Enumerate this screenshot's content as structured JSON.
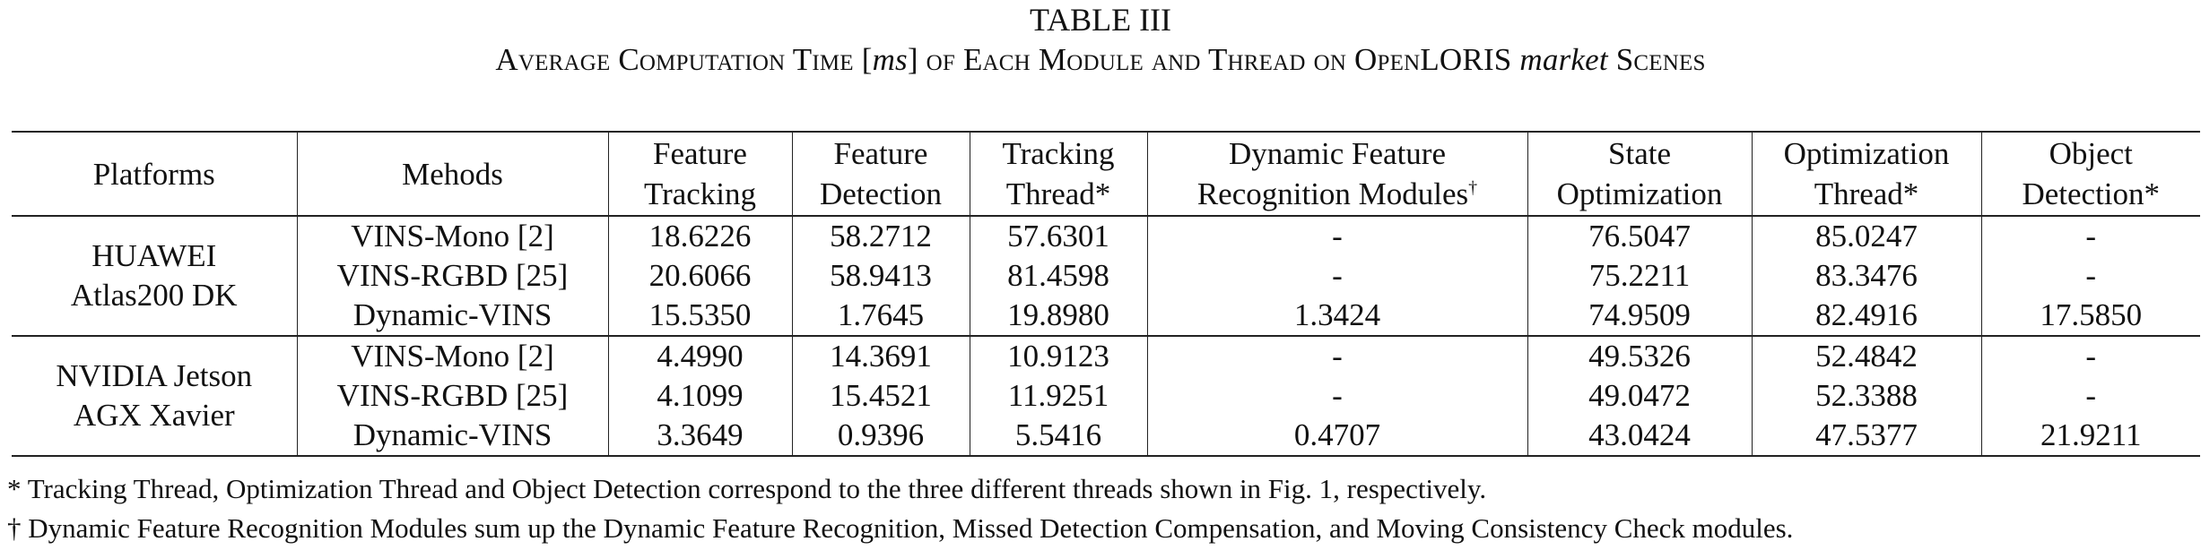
{
  "caption": {
    "label": "TABLE III",
    "title_prefix": "Average Computation Time [",
    "title_unit": "ms",
    "title_middle": "] of Each Module and Thread on OpenLORIS ",
    "title_scene": "market",
    "title_suffix": " Scenes"
  },
  "table": {
    "headers": {
      "platforms": "Platforms",
      "methods": "Mehods",
      "feature_tracking_1": "Feature",
      "feature_tracking_2": "Tracking",
      "feature_detection_1": "Feature",
      "feature_detection_2": "Detection",
      "tracking_thread_1": "Tracking",
      "tracking_thread_2": "Thread*",
      "dynamic_feature_1": "Dynamic Feature",
      "dynamic_feature_2": "Recognition Modules",
      "dynamic_feature_mark": "†",
      "state_opt_1": "State",
      "state_opt_2": "Optimization",
      "opt_thread_1": "Optimization",
      "opt_thread_2": "Thread*",
      "object_det_1": "Object",
      "object_det_2": "Detection*"
    },
    "groups": [
      {
        "platform_line1": "HUAWEI",
        "platform_line2": "Atlas200 DK",
        "rows": [
          {
            "method": "VINS-Mono [2]",
            "feature_tracking": "18.6226",
            "feature_detection": "58.2712",
            "tracking_thread": "57.6301",
            "dynamic_feature": "-",
            "state_optimization": "76.5047",
            "optimization_thread": "85.0247",
            "object_detection": "-"
          },
          {
            "method": "VINS-RGBD [25]",
            "feature_tracking": "20.6066",
            "feature_detection": "58.9413",
            "tracking_thread": "81.4598",
            "dynamic_feature": "-",
            "state_optimization": "75.2211",
            "optimization_thread": "83.3476",
            "object_detection": "-"
          },
          {
            "method": "Dynamic-VINS",
            "feature_tracking": "15.5350",
            "feature_detection": "1.7645",
            "tracking_thread": "19.8980",
            "dynamic_feature": "1.3424",
            "state_optimization": "74.9509",
            "optimization_thread": "82.4916",
            "object_detection": "17.5850"
          }
        ]
      },
      {
        "platform_line1": "NVIDIA Jetson",
        "platform_line2": "AGX Xavier",
        "rows": [
          {
            "method": "VINS-Mono [2]",
            "feature_tracking": "4.4990",
            "feature_detection": "14.3691",
            "tracking_thread": "10.9123",
            "dynamic_feature": "-",
            "state_optimization": "49.5326",
            "optimization_thread": "52.4842",
            "object_detection": "-"
          },
          {
            "method": "VINS-RGBD [25]",
            "feature_tracking": "4.1099",
            "feature_detection": "15.4521",
            "tracking_thread": "11.9251",
            "dynamic_feature": "-",
            "state_optimization": "49.0472",
            "optimization_thread": "52.3388",
            "object_detection": "-"
          },
          {
            "method": "Dynamic-VINS",
            "feature_tracking": "3.3649",
            "feature_detection": "0.9396",
            "tracking_thread": "5.5416",
            "dynamic_feature": "0.4707",
            "state_optimization": "43.0424",
            "optimization_thread": "47.5377",
            "object_detection": "21.9211"
          }
        ]
      }
    ]
  },
  "footnotes": {
    "note1": "* Tracking Thread, Optimization Thread and Object Detection correspond to the three different threads shown in Fig. 1, respectively.",
    "note2": "† Dynamic Feature Recognition Modules sum up the Dynamic Feature Recognition, Missed Detection Compensation, and Moving Consistency Check modules."
  }
}
